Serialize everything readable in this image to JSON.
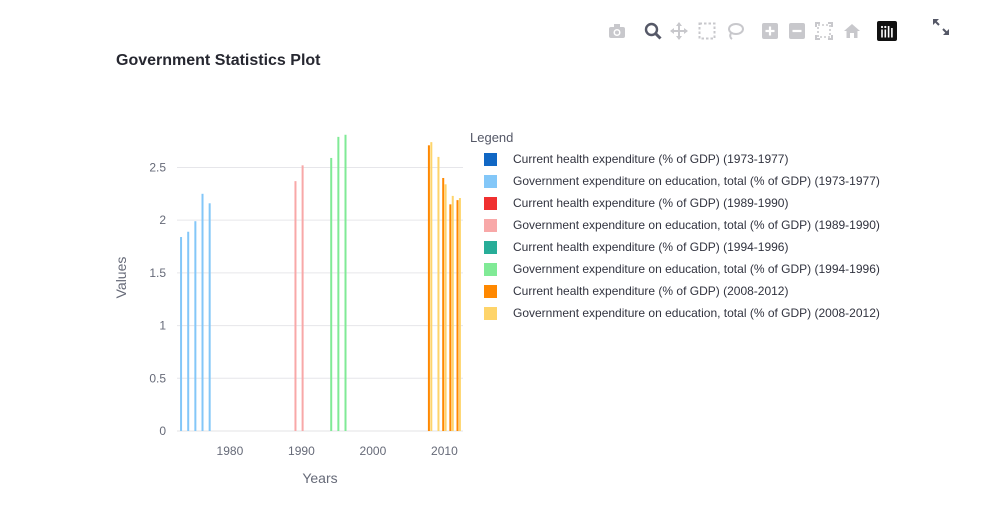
{
  "page_title": "Government Statistics Plot",
  "modebar": {
    "icons": [
      "camera-icon",
      "zoom-icon",
      "pan-icon",
      "box-select-icon",
      "lasso-select-icon",
      "zoom-in-icon",
      "zoom-out-icon",
      "autoscale-icon",
      "reset-axes-icon",
      "plotly-logo-icon"
    ],
    "expand_icon": "fullscreen-icon"
  },
  "chart_data": {
    "type": "bar",
    "title": "Government Statistics Plot",
    "xlabel": "Years",
    "ylabel": "Values",
    "xlim": [
      1972.6,
      2012.6
    ],
    "ylim": [
      0,
      2.95
    ],
    "xticks": [
      1980,
      1990,
      2000,
      2010
    ],
    "yticks": [
      0,
      0.5,
      1,
      1.5,
      2,
      2.5
    ],
    "ytick_labels": [
      "0",
      "0.5",
      "1",
      "1.5",
      "2",
      "2.5"
    ],
    "grid": true,
    "legend_title": "Legend",
    "legend_position": "right",
    "series": [
      {
        "name": "Current health expenditure (% of GDP) (1973-1977)",
        "color": "#1167c4",
        "x": [
          1973,
          1974,
          1975,
          1976,
          1977
        ],
        "values": [
          null,
          null,
          null,
          null,
          null
        ]
      },
      {
        "name": "Government expenditure on education, total (% of GDP) (1973-1977)",
        "color": "#83c7f8",
        "x": [
          1973,
          1974,
          1975,
          1976,
          1977
        ],
        "values": [
          1.84,
          1.89,
          1.99,
          2.25,
          2.16
        ]
      },
      {
        "name": "Current health expenditure (% of GDP) (1989-1990)",
        "color": "#f03030",
        "x": [
          1989,
          1990
        ],
        "values": [
          null,
          null
        ]
      },
      {
        "name": "Government expenditure on education, total (% of GDP) (1989-1990)",
        "color": "#f8a8a8",
        "x": [
          1989,
          1990
        ],
        "values": [
          2.37,
          2.52
        ]
      },
      {
        "name": "Current health expenditure (% of GDP) (1994-1996)",
        "color": "#28ad98",
        "x": [
          1994,
          1995,
          1996
        ],
        "values": [
          null,
          null,
          null
        ]
      },
      {
        "name": "Government expenditure on education, total (% of GDP) (1994-1996)",
        "color": "#80ea96",
        "x": [
          1994,
          1995,
          1996
        ],
        "values": [
          2.59,
          2.79,
          2.81
        ]
      },
      {
        "name": "Current health expenditure (% of GDP) (2008-2012)",
        "color": "#ff8800",
        "x": [
          2008,
          2009,
          2010,
          2011,
          2012
        ],
        "values": [
          2.71,
          null,
          2.4,
          2.15,
          2.19
        ]
      },
      {
        "name": "Government expenditure on education, total (% of GDP) (2008-2012)",
        "color": "#fed46a",
        "x": [
          2008,
          2009,
          2010,
          2011,
          2012
        ],
        "values": [
          2.74,
          2.6,
          2.34,
          2.23,
          2.21
        ]
      }
    ]
  }
}
